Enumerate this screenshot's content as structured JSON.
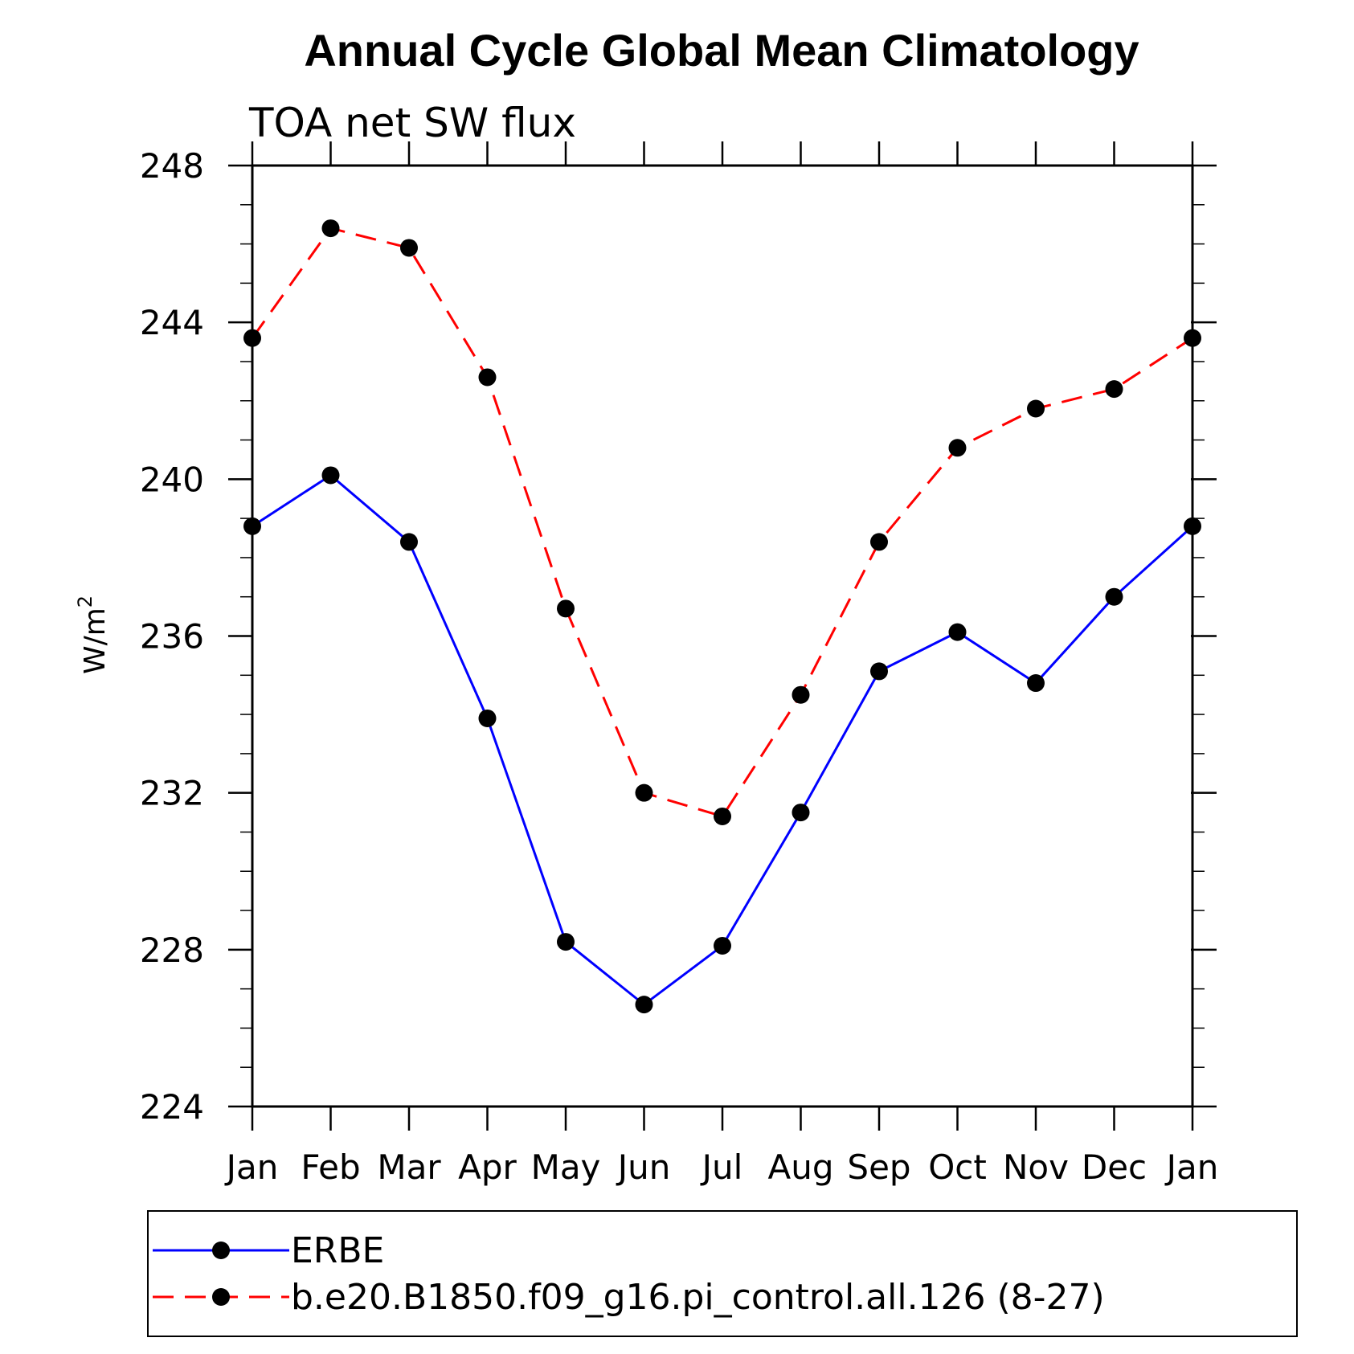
{
  "chart_data": {
    "type": "line",
    "title": "Annual Cycle Global Mean Climatology",
    "subtitle": "TOA net SW flux",
    "ylabel_base": "W/m",
    "ylabel_sup": "2",
    "categories": [
      "Jan",
      "Feb",
      "Mar",
      "Apr",
      "May",
      "Jun",
      "Jul",
      "Aug",
      "Sep",
      "Oct",
      "Nov",
      "Dec",
      "Jan"
    ],
    "ylim": [
      224,
      248
    ],
    "yticks": [
      224,
      228,
      232,
      236,
      240,
      244,
      248
    ],
    "grid": false,
    "legend_position": "bottom",
    "series": [
      {
        "name": "ERBE",
        "color": "#0000ff",
        "dash": "solid",
        "marker": "filled-circle",
        "values": [
          238.8,
          240.1,
          238.4,
          233.9,
          228.2,
          226.6,
          228.1,
          231.5,
          235.1,
          236.1,
          234.8,
          237.0,
          238.8
        ]
      },
      {
        "name": "b.e20.B1850.f09_g16.pi_control.all.126 (8-27)",
        "color": "#ff0000",
        "dash": "dashed",
        "marker": "filled-circle",
        "values": [
          243.6,
          246.4,
          245.9,
          242.6,
          236.7,
          232.0,
          231.4,
          234.5,
          238.4,
          240.8,
          241.8,
          242.3,
          243.6
        ]
      }
    ]
  }
}
